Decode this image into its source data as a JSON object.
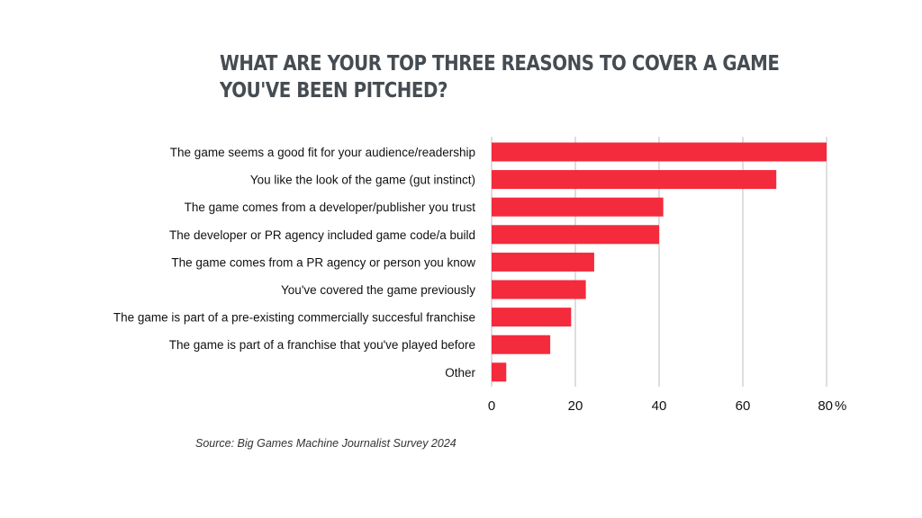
{
  "title_lines": [
    "WHAT ARE YOUR TOP THREE REASONS TO COVER A GAME",
    "YOU'VE BEEN PITCHED?"
  ],
  "source": "Source: Big Games Machine Journalist Survey 2024",
  "colors": {
    "bar": "#f32b3c",
    "grid": "#bdbdbd",
    "title": "#454c52"
  },
  "chart_data": {
    "type": "bar",
    "orientation": "horizontal",
    "title": "WHAT ARE YOUR TOP THREE REASONS TO COVER A GAME YOU'VE BEEN PITCHED?",
    "categories": [
      "The game seems a good fit for your audience/readership",
      "You like the look of the game (gut instinct)",
      "The game comes from a developer/publisher you trust",
      "The developer or PR agency included game code/a build",
      "The game comes from a PR agency or person you know",
      "You've covered the game previously",
      "The game is part of a pre-existing commercially succesful franchise",
      "The game is part of a franchise that you've played before",
      "Other"
    ],
    "values": [
      80,
      68,
      41,
      40,
      24.5,
      22.5,
      19,
      14,
      3.5
    ],
    "xlim": [
      0,
      80
    ],
    "xticks": [
      0,
      20,
      40,
      60,
      80
    ],
    "x_tick_labels": [
      "0",
      "20",
      "40",
      "60",
      "80"
    ],
    "x_unit": "%",
    "grid": true,
    "legend": "none"
  }
}
